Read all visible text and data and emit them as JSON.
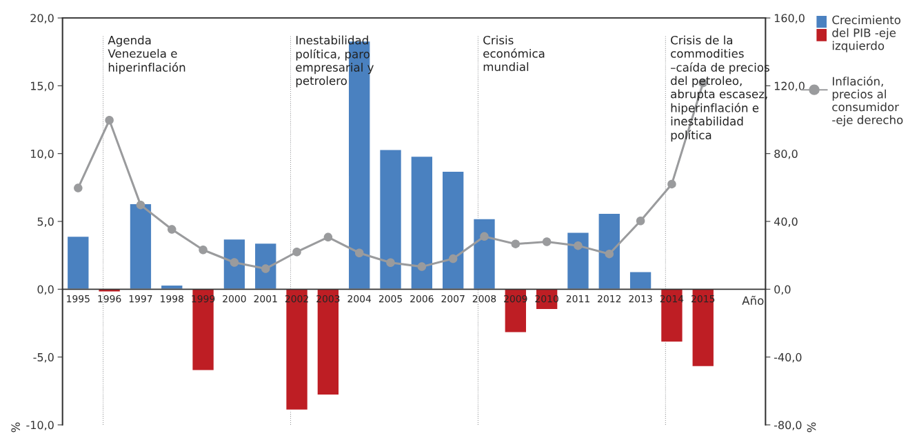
{
  "chart_data": {
    "type": "bar",
    "categories": [
      "1995",
      "1996",
      "1997",
      "1998",
      "1999",
      "2000",
      "2001",
      "2002",
      "2003",
      "2004",
      "2005",
      "2006",
      "2007",
      "2008",
      "2009",
      "2010",
      "2011",
      "2012",
      "2013",
      "2014",
      "2015"
    ],
    "xlabel": "Año",
    "ylabel": "%",
    "y2label": "%",
    "series": [
      {
        "name": "Crecimiento del PIB -eje izquierdo",
        "colors": [
          "#4a81c0",
          "#be1e24",
          "#4a81c0",
          "#4a81c0",
          "#be1e24",
          "#4a81c0",
          "#4a81c0",
          "#be1e24",
          "#be1e24",
          "#4a81c0",
          "#4a81c0",
          "#4a81c0",
          "#4a81c0",
          "#4a81c0",
          "#be1e24",
          "#be1e24",
          "#4a81c0",
          "#4a81c0",
          "#4a81c0",
          "#be1e24",
          "#be1e24"
        ],
        "values": [
          3.9,
          -0.2,
          6.3,
          0.3,
          -6.0,
          3.7,
          3.4,
          -8.9,
          -7.8,
          18.3,
          10.3,
          9.8,
          8.7,
          5.2,
          -3.2,
          -1.5,
          4.2,
          5.6,
          1.3,
          -3.9,
          -5.7
        ]
      },
      {
        "name": "Inflación, precios al consumidor -eje derecho",
        "type": "line",
        "axis": "y2",
        "color": "#9a9b9d",
        "marker": "circle",
        "values": [
          59.7,
          99.7,
          49.7,
          35.3,
          23.2,
          15.8,
          12.1,
          22.0,
          30.7,
          21.4,
          15.7,
          13.3,
          18.0,
          31.1,
          26.7,
          28.0,
          25.7,
          20.8,
          40.3,
          62.0,
          121.7
        ]
      }
    ],
    "ylim": [
      -10,
      20
    ],
    "yticks": [
      {
        "value": -10,
        "label": "-10,0"
      },
      {
        "value": -5,
        "label": "-5,0"
      },
      {
        "value": 0,
        "label": "0,0"
      },
      {
        "value": 5,
        "label": "5,0"
      },
      {
        "value": 10,
        "label": "10,0"
      },
      {
        "value": 15,
        "label": "15,0"
      },
      {
        "value": 20,
        "label": "20,0"
      }
    ],
    "y2lim": [
      -80,
      160
    ],
    "y2ticks": [
      {
        "value": -80,
        "label": "-80,0"
      },
      {
        "value": -40,
        "label": "-40,0"
      },
      {
        "value": 0,
        "label": "0,0"
      },
      {
        "value": 40,
        "label": "40,0"
      },
      {
        "value": 80,
        "label": "80,0"
      },
      {
        "value": 120,
        "label": "120,0"
      },
      {
        "value": 160,
        "label": "160,0"
      }
    ],
    "ref_lines": [
      {
        "axis": "x",
        "value": "1996",
        "label": "Agenda\nVenezuela e\nhiperinflación",
        "color": "#9a9b9d",
        "line_style": "dotted"
      },
      {
        "axis": "x",
        "value": "2002",
        "label": "Inestabilidad\npolítica, paro\nempresarial y\npetrolero",
        "color": "#9a9b9d",
        "line_style": "dotted"
      },
      {
        "axis": "x",
        "value": "2008",
        "label": "Crisis\neconómica\nmundial",
        "color": "#9a9b9d",
        "line_style": "dotted"
      },
      {
        "axis": "x",
        "value": "2014",
        "label": "Crisis de la\ncommodities\n–caída de precios\ndel petroleo,\nabrupta escasez,\nhiperinflación e\ninestabilidad\npolítica",
        "color": "#9a9b9d",
        "line_style": "dotted"
      }
    ],
    "grid": false,
    "legend": "top right"
  }
}
